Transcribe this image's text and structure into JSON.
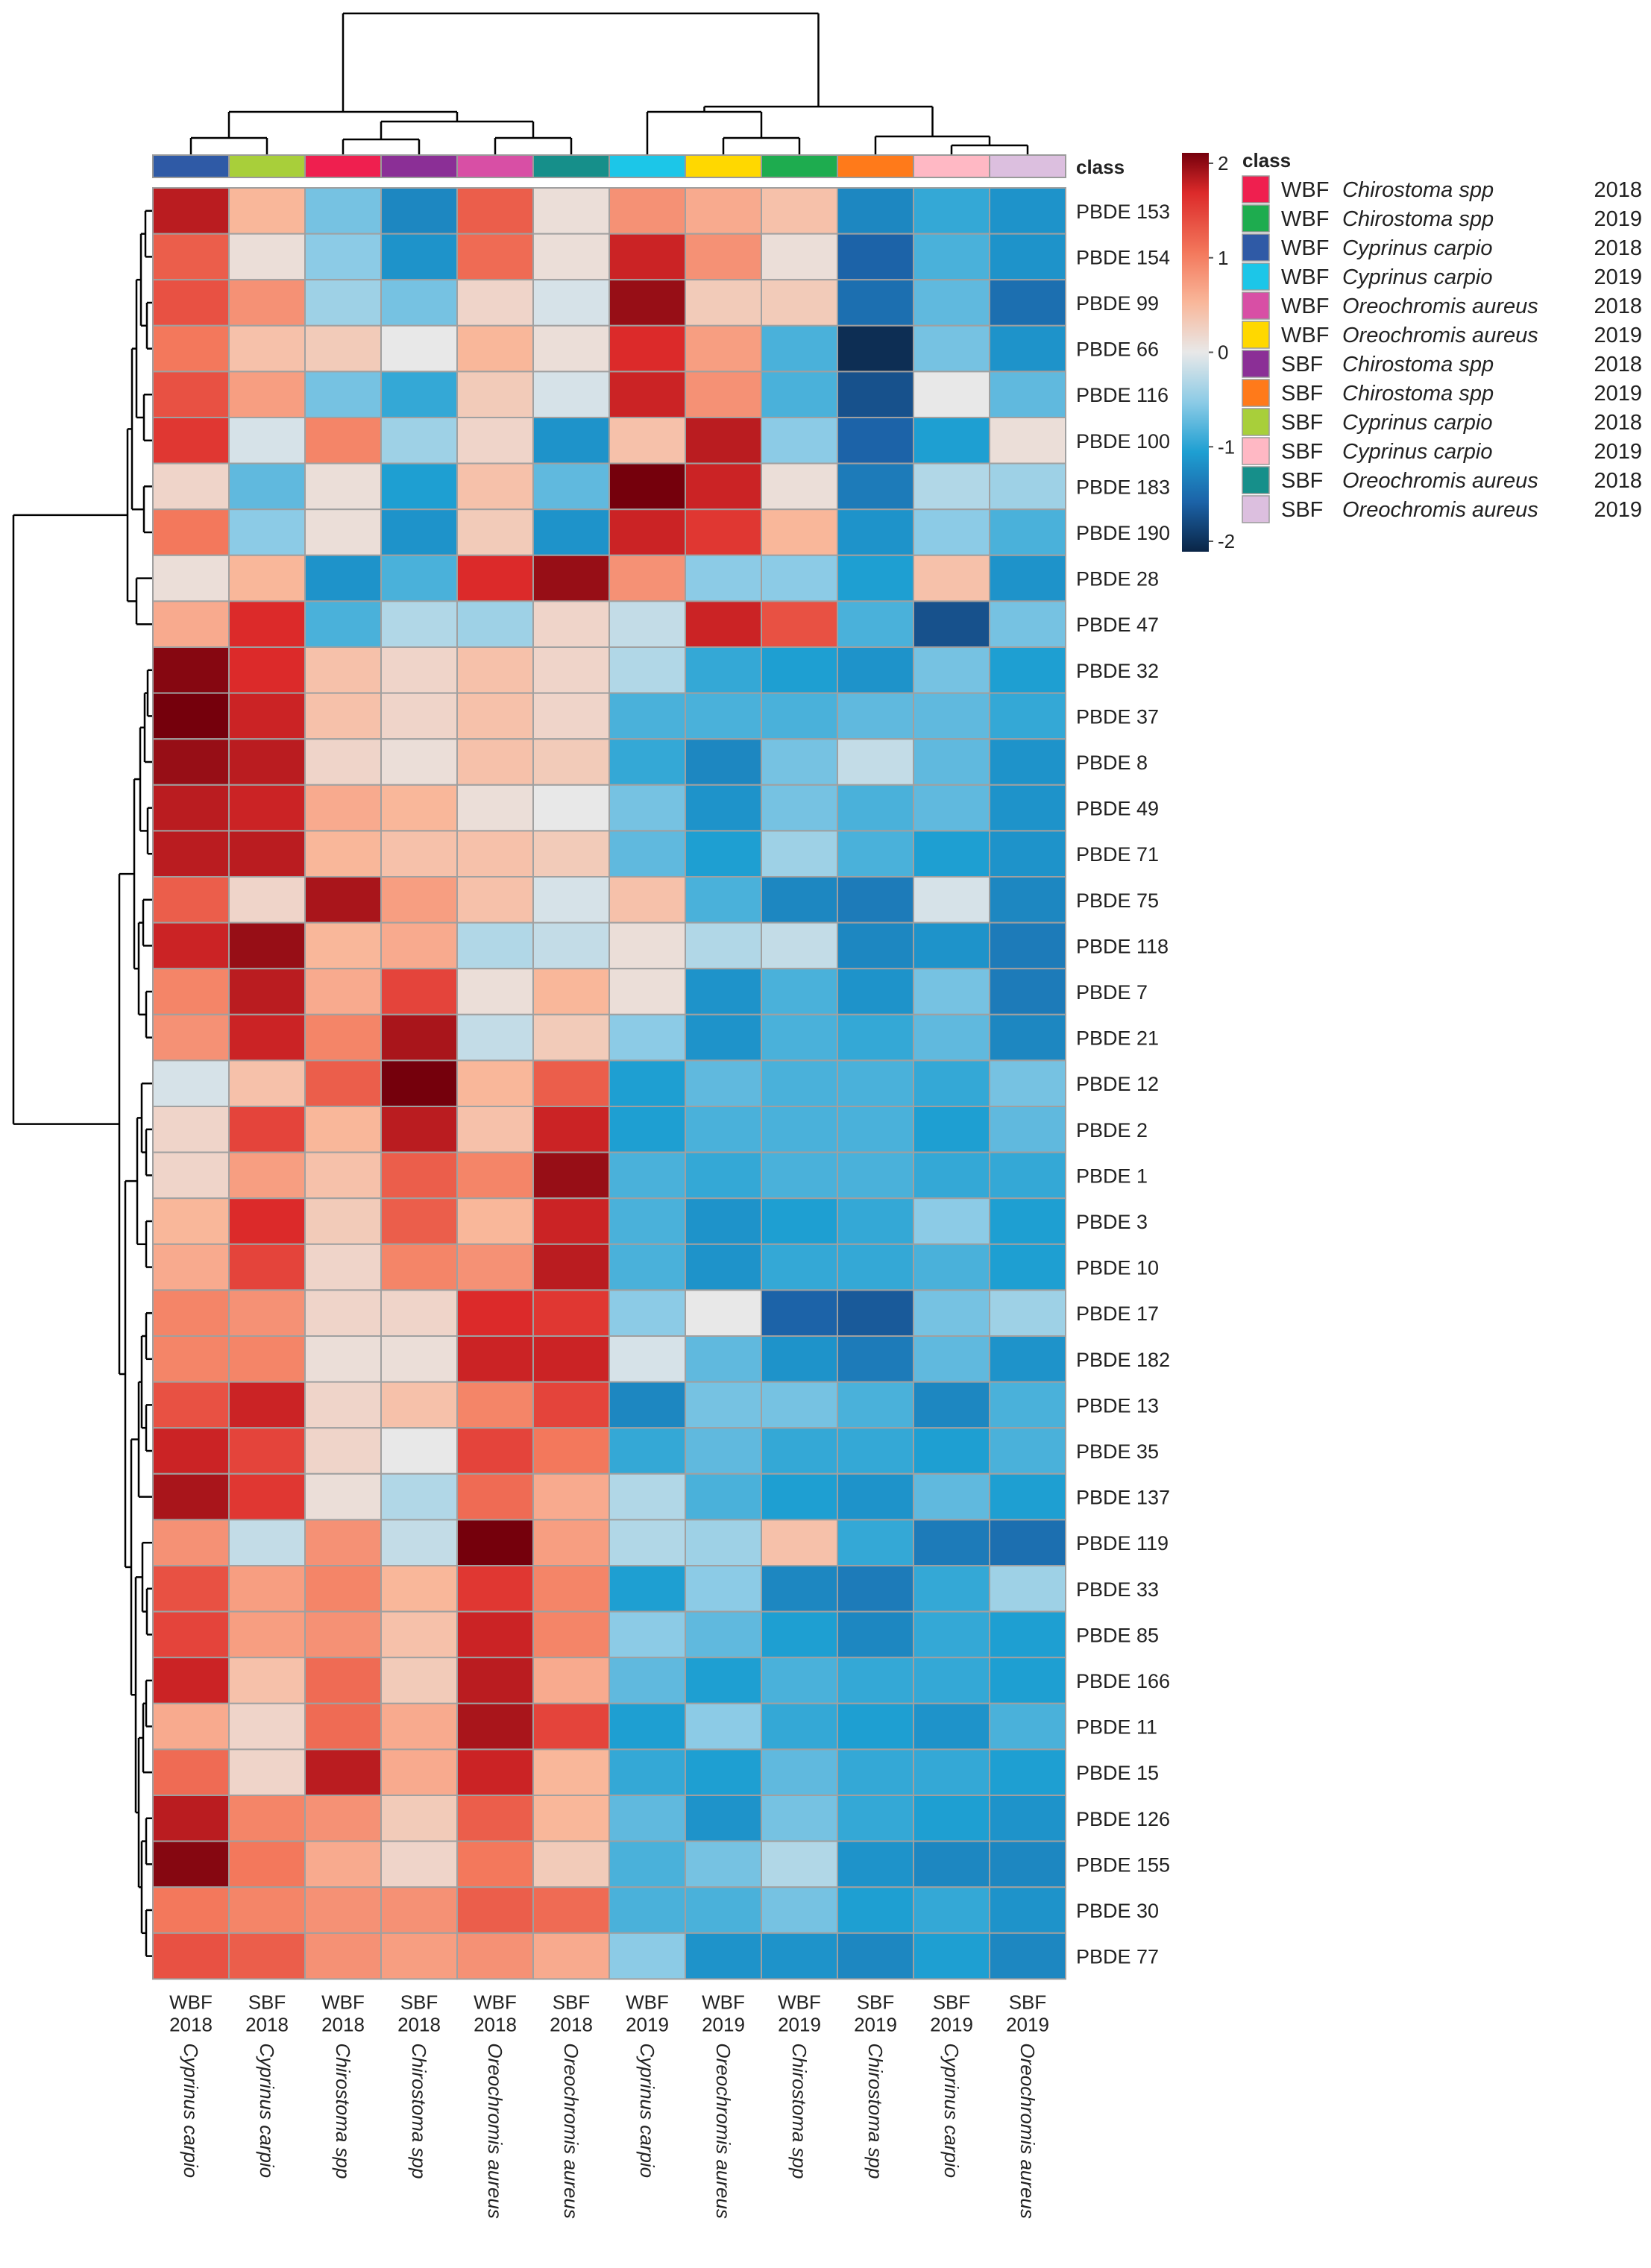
{
  "chart_data": {
    "type": "heatmap",
    "title": "",
    "columns": [
      {
        "group": "WBF",
        "year": "2018",
        "species": "Cyprinus carpio",
        "class_color": "#2f5aa6"
      },
      {
        "group": "SBF",
        "year": "2018",
        "species": "Cyprinus carpio",
        "class_color": "#a8cf3a"
      },
      {
        "group": "WBF",
        "year": "2018",
        "species": "Chirostoma spp",
        "class_color": "#ef1f4f"
      },
      {
        "group": "SBF",
        "year": "2018",
        "species": "Chirostoma spp",
        "class_color": "#8b2f96"
      },
      {
        "group": "WBF",
        "year": "2018",
        "species": "Oreochromis aureus",
        "class_color": "#d84fa5"
      },
      {
        "group": "SBF",
        "year": "2018",
        "species": "Oreochromis aureus",
        "class_color": "#168f8a"
      },
      {
        "group": "WBF",
        "year": "2019",
        "species": "Cyprinus carpio",
        "class_color": "#1cc6e8"
      },
      {
        "group": "WBF",
        "year": "2019",
        "species": "Oreochromis aureus",
        "class_color": "#ffd800"
      },
      {
        "group": "WBF",
        "year": "2019",
        "species": "Chirostoma spp",
        "class_color": "#1eac4f"
      },
      {
        "group": "SBF",
        "year": "2019",
        "species": "Chirostoma spp",
        "class_color": "#ff7a1a"
      },
      {
        "group": "SBF",
        "year": "2019",
        "species": "Cyprinus carpio",
        "class_color": "#ffb8c4"
      },
      {
        "group": "SBF",
        "year": "2019",
        "species": "Oreochromis aureus",
        "class_color": "#dcbfdf"
      }
    ],
    "rows": [
      "PBDE 153",
      "PBDE 154",
      "PBDE 99",
      "PBDE 66",
      "PBDE 116",
      "PBDE 100",
      "PBDE 183",
      "PBDE 190",
      "PBDE 28",
      "PBDE 47",
      "PBDE 32",
      "PBDE 37",
      "PBDE 8",
      "PBDE 49",
      "PBDE 71",
      "PBDE 75",
      "PBDE 118",
      "PBDE 7",
      "PBDE 21",
      "PBDE 12",
      "PBDE 2",
      "PBDE 1",
      "PBDE 3",
      "PBDE 10",
      "PBDE 17",
      "PBDE 182",
      "PBDE 13",
      "PBDE 35",
      "PBDE 137",
      "PBDE 119",
      "PBDE 33",
      "PBDE 85",
      "PBDE 166",
      "PBDE 11",
      "PBDE 15",
      "PBDE 126",
      "PBDE 155",
      "PBDE 30",
      "PBDE 77"
    ],
    "values": [
      [
        1.8,
        0.5,
        -0.6,
        -1.2,
        1.2,
        0.1,
        0.8,
        0.6,
        0.4,
        -1.2,
        -0.9,
        -1.1
      ],
      [
        1.2,
        0.1,
        -0.5,
        -1.1,
        1.1,
        0.1,
        1.7,
        0.8,
        0.1,
        -1.5,
        -0.8,
        -1.1
      ],
      [
        1.3,
        0.8,
        -0.4,
        -0.6,
        0.2,
        -0.1,
        2.0,
        0.3,
        0.3,
        -1.4,
        -0.7,
        -1.4
      ],
      [
        1.0,
        0.4,
        0.3,
        0.0,
        0.5,
        0.1,
        1.6,
        0.7,
        -0.8,
        -2.1,
        -0.6,
        -1.1
      ],
      [
        1.3,
        0.7,
        -0.6,
        -0.9,
        0.3,
        -0.1,
        1.7,
        0.8,
        -0.8,
        -1.7,
        0.0,
        -0.7
      ],
      [
        1.5,
        -0.1,
        0.9,
        -0.4,
        0.2,
        -1.1,
        0.4,
        1.8,
        -0.5,
        -1.5,
        -1.0,
        0.1
      ],
      [
        0.2,
        -0.7,
        0.1,
        -1.0,
        0.4,
        -0.7,
        2.2,
        1.7,
        0.1,
        -1.3,
        -0.3,
        -0.4
      ],
      [
        1.0,
        -0.5,
        0.1,
        -1.1,
        0.3,
        -1.1,
        1.7,
        1.5,
        0.5,
        -1.1,
        -0.5,
        -0.8
      ],
      [
        0.1,
        0.5,
        -1.1,
        -0.8,
        1.6,
        2.0,
        0.8,
        -0.5,
        -0.5,
        -1.0,
        0.4,
        -1.1
      ],
      [
        0.6,
        1.6,
        -0.8,
        -0.3,
        -0.4,
        0.2,
        -0.2,
        1.7,
        1.3,
        -0.8,
        -1.7,
        -0.6
      ],
      [
        2.1,
        1.6,
        0.4,
        0.2,
        0.4,
        0.2,
        -0.3,
        -0.9,
        -1.0,
        -1.1,
        -0.6,
        -1.0
      ],
      [
        2.2,
        1.7,
        0.4,
        0.2,
        0.4,
        0.2,
        -0.8,
        -0.8,
        -0.8,
        -0.7,
        -0.7,
        -0.9
      ],
      [
        2.0,
        1.8,
        0.2,
        0.1,
        0.4,
        0.3,
        -0.9,
        -1.2,
        -0.6,
        -0.2,
        -0.7,
        -1.1
      ],
      [
        1.8,
        1.7,
        0.6,
        0.5,
        0.1,
        0.0,
        -0.6,
        -1.1,
        -0.6,
        -0.8,
        -0.7,
        -1.1
      ],
      [
        1.8,
        1.8,
        0.5,
        0.4,
        0.4,
        0.3,
        -0.7,
        -1.0,
        -0.4,
        -0.8,
        -1.0,
        -1.1
      ],
      [
        1.2,
        0.2,
        1.9,
        0.7,
        0.4,
        -0.1,
        0.4,
        -0.8,
        -1.2,
        -1.3,
        -0.1,
        -1.2
      ],
      [
        1.7,
        2.0,
        0.5,
        0.6,
        -0.3,
        -0.2,
        0.1,
        -0.3,
        -0.2,
        -1.2,
        -1.1,
        -1.3
      ],
      [
        0.9,
        1.8,
        0.6,
        1.4,
        0.1,
        0.5,
        0.1,
        -1.1,
        -0.8,
        -1.1,
        -0.6,
        -1.3
      ],
      [
        0.8,
        1.7,
        0.9,
        1.9,
        -0.2,
        0.3,
        -0.5,
        -1.1,
        -0.8,
        -0.9,
        -0.7,
        -1.2
      ],
      [
        -0.1,
        0.4,
        1.2,
        2.2,
        0.5,
        1.2,
        -1.0,
        -0.7,
        -0.8,
        -0.8,
        -0.9,
        -0.6
      ],
      [
        0.2,
        1.4,
        0.5,
        1.8,
        0.4,
        1.7,
        -1.0,
        -0.8,
        -0.8,
        -0.8,
        -1.0,
        -0.7
      ],
      [
        0.2,
        0.7,
        0.4,
        1.2,
        0.9,
        2.0,
        -0.8,
        -0.9,
        -0.8,
        -0.8,
        -0.9,
        -0.9
      ],
      [
        0.5,
        1.6,
        0.3,
        1.2,
        0.5,
        1.7,
        -0.8,
        -1.1,
        -1.0,
        -0.9,
        -0.5,
        -1.0
      ],
      [
        0.6,
        1.4,
        0.2,
        0.9,
        0.8,
        1.8,
        -0.8,
        -1.1,
        -0.9,
        -0.9,
        -0.8,
        -1.0
      ],
      [
        0.9,
        0.8,
        0.2,
        0.2,
        1.6,
        1.5,
        -0.5,
        0.0,
        -1.5,
        -1.6,
        -0.6,
        -0.4
      ],
      [
        0.9,
        0.9,
        0.1,
        0.1,
        1.7,
        1.7,
        -0.1,
        -0.7,
        -1.1,
        -1.3,
        -0.7,
        -1.1
      ],
      [
        1.3,
        1.7,
        0.2,
        0.4,
        0.9,
        1.4,
        -1.2,
        -0.6,
        -0.6,
        -0.8,
        -1.2,
        -0.8
      ],
      [
        1.7,
        1.4,
        0.2,
        0.0,
        1.4,
        1.0,
        -0.9,
        -0.7,
        -0.9,
        -0.9,
        -1.0,
        -0.8
      ],
      [
        1.9,
        1.5,
        0.1,
        -0.3,
        1.1,
        0.6,
        -0.3,
        -0.8,
        -1.0,
        -1.1,
        -0.7,
        -1.0
      ],
      [
        0.8,
        -0.2,
        0.8,
        -0.2,
        2.2,
        0.7,
        -0.3,
        -0.4,
        0.4,
        -0.9,
        -1.3,
        -1.4
      ],
      [
        1.3,
        0.7,
        0.9,
        0.5,
        1.5,
        0.9,
        -1.0,
        -0.5,
        -1.2,
        -1.3,
        -0.9,
        -0.4
      ],
      [
        1.4,
        0.7,
        0.8,
        0.4,
        1.7,
        0.9,
        -0.5,
        -0.7,
        -1.0,
        -1.2,
        -0.9,
        -1.0
      ],
      [
        1.7,
        0.4,
        1.1,
        0.3,
        1.8,
        0.6,
        -0.7,
        -1.0,
        -0.8,
        -0.9,
        -0.9,
        -1.0
      ],
      [
        0.6,
        0.2,
        1.1,
        0.6,
        1.9,
        1.4,
        -1.0,
        -0.5,
        -0.9,
        -1.0,
        -1.1,
        -0.8
      ],
      [
        1.1,
        0.2,
        1.8,
        0.6,
        1.7,
        0.5,
        -0.9,
        -1.0,
        -0.7,
        -0.9,
        -0.9,
        -1.0
      ],
      [
        1.8,
        0.9,
        0.8,
        0.3,
        1.2,
        0.5,
        -0.7,
        -1.1,
        -0.6,
        -0.9,
        -1.0,
        -1.1
      ],
      [
        2.1,
        1.0,
        0.6,
        0.2,
        1.0,
        0.3,
        -0.8,
        -0.6,
        -0.3,
        -1.1,
        -1.2,
        -1.2
      ],
      [
        1.0,
        0.9,
        0.8,
        0.8,
        1.2,
        1.1,
        -0.8,
        -0.8,
        -0.6,
        -1.0,
        -0.9,
        -1.1
      ],
      [
        1.3,
        1.2,
        0.8,
        0.7,
        0.8,
        0.6,
        -0.5,
        -1.1,
        -1.1,
        -1.2,
        -1.0,
        -1.2
      ]
    ],
    "color_scale": {
      "min": -2,
      "max": 2,
      "ticks": [
        "2",
        "1",
        "0",
        "-1",
        "-2"
      ],
      "stops": [
        {
          "v": -2.2,
          "c": "#0a2546"
        },
        {
          "v": -1.5,
          "c": "#1c63a8"
        },
        {
          "v": -1.0,
          "c": "#1e9fd2"
        },
        {
          "v": -0.5,
          "c": "#8ccbe6"
        },
        {
          "v": 0.0,
          "c": "#e8e8e8"
        },
        {
          "v": 0.5,
          "c": "#f9b79a"
        },
        {
          "v": 1.0,
          "c": "#f3785c"
        },
        {
          "v": 1.6,
          "c": "#dc2a2a"
        },
        {
          "v": 2.2,
          "c": "#75000c"
        }
      ]
    },
    "class_label": "class",
    "legend": {
      "title": "class",
      "items": [
        {
          "group": "WBF",
          "species": "Chirostoma spp",
          "year": "2018",
          "color": "#ef1f4f"
        },
        {
          "group": "WBF",
          "species": "Chirostoma spp",
          "year": "2019",
          "color": "#1eac4f"
        },
        {
          "group": "WBF",
          "species": "Cyprinus carpio",
          "year": "2018",
          "color": "#2f5aa6"
        },
        {
          "group": "WBF",
          "species": "Cyprinus carpio",
          "year": "2019",
          "color": "#1cc6e8"
        },
        {
          "group": "WBF",
          "species": "Oreochromis aureus",
          "year": "2018",
          "color": "#d84fa5"
        },
        {
          "group": "WBF",
          "species": "Oreochromis aureus",
          "year": "2019",
          "color": "#ffd800"
        },
        {
          "group": "SBF",
          "species": "Chirostoma spp",
          "year": "2018",
          "color": "#8b2f96"
        },
        {
          "group": "SBF",
          "species": "Chirostoma spp",
          "year": "2019",
          "color": "#ff7a1a"
        },
        {
          "group": "SBF",
          "species": "Cyprinus carpio",
          "year": "2018",
          "color": "#a8cf3a"
        },
        {
          "group": "SBF",
          "species": "Cyprinus carpio",
          "year": "2019",
          "color": "#ffb8c4"
        },
        {
          "group": "SBF",
          "species": "Oreochromis aureus",
          "year": "2018",
          "color": "#168f8a"
        },
        {
          "group": "SBF",
          "species": "Oreochromis aureus",
          "year": "2019",
          "color": "#dcbfdf"
        }
      ]
    }
  }
}
